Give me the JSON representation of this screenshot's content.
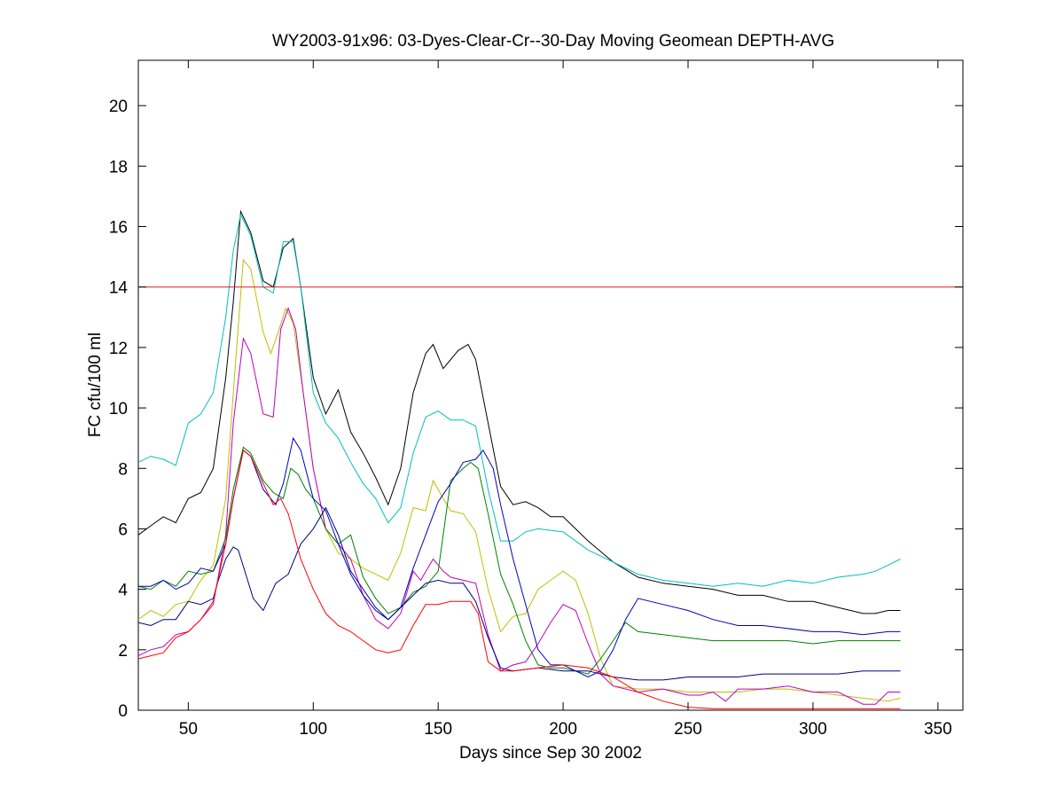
{
  "chart_data": {
    "type": "line",
    "title": "WY2003-91x96: 03-Dyes-Clear-Cr--30-Day Moving Geomean DEPTH-AVG",
    "xlabel": "Days since Sep 30 2002",
    "ylabel": "FC cfu/100 ml",
    "xlim": [
      30,
      360
    ],
    "ylim": [
      0,
      21.5
    ],
    "xticks": [
      50,
      100,
      150,
      200,
      250,
      300,
      350
    ],
    "yticks": [
      0,
      2,
      4,
      6,
      8,
      10,
      12,
      14,
      16,
      18,
      20
    ],
    "grid": false,
    "reference_line": {
      "y": 14,
      "color": "#e41a1c"
    },
    "series": [
      {
        "name": "black",
        "color": "#000000",
        "x": [
          30,
          35,
          40,
          45,
          50,
          55,
          60,
          65,
          68,
          71,
          75,
          80,
          84,
          88,
          92,
          95,
          100,
          105,
          110,
          115,
          120,
          125,
          130,
          135,
          140,
          145,
          148,
          152,
          155,
          158,
          162,
          165,
          170,
          175,
          180,
          185,
          190,
          195,
          200,
          210,
          220,
          230,
          240,
          250,
          260,
          270,
          280,
          290,
          300,
          310,
          320,
          325,
          330,
          335
        ],
        "y": [
          5.8,
          6.1,
          6.4,
          6.2,
          7.0,
          7.2,
          8.0,
          11.0,
          13.5,
          16.5,
          15.8,
          14.2,
          14.0,
          15.3,
          15.6,
          14.0,
          11.0,
          9.8,
          10.6,
          9.2,
          8.5,
          7.7,
          6.8,
          8.0,
          10.5,
          11.8,
          12.1,
          11.3,
          11.6,
          11.9,
          12.1,
          11.6,
          9.5,
          7.4,
          6.8,
          6.9,
          6.7,
          6.4,
          6.4,
          5.6,
          4.9,
          4.4,
          4.2,
          4.1,
          4.0,
          3.8,
          3.8,
          3.6,
          3.6,
          3.4,
          3.2,
          3.2,
          3.3,
          3.3
        ]
      },
      {
        "name": "cyan",
        "color": "#00bfbf",
        "x": [
          30,
          35,
          40,
          45,
          50,
          55,
          60,
          65,
          68,
          71,
          75,
          80,
          84,
          88,
          92,
          95,
          100,
          105,
          110,
          115,
          120,
          125,
          130,
          135,
          140,
          145,
          150,
          155,
          160,
          165,
          170,
          175,
          180,
          185,
          190,
          200,
          210,
          220,
          230,
          240,
          250,
          260,
          270,
          280,
          290,
          300,
          310,
          320,
          325,
          330,
          335
        ],
        "y": [
          8.2,
          8.4,
          8.3,
          8.1,
          9.5,
          9.8,
          10.5,
          13.0,
          15.2,
          16.4,
          15.7,
          14.0,
          13.8,
          15.5,
          15.5,
          14.0,
          10.5,
          9.5,
          9.0,
          8.2,
          7.5,
          7.0,
          6.2,
          6.7,
          8.5,
          9.7,
          9.9,
          9.6,
          9.6,
          9.4,
          7.3,
          5.6,
          5.6,
          5.9,
          6.0,
          5.9,
          5.3,
          4.9,
          4.5,
          4.3,
          4.2,
          4.1,
          4.2,
          4.1,
          4.3,
          4.2,
          4.4,
          4.5,
          4.6,
          4.8,
          5.0
        ]
      },
      {
        "name": "yellow",
        "color": "#bfbf00",
        "x": [
          30,
          35,
          40,
          45,
          50,
          55,
          60,
          65,
          68,
          72,
          75,
          80,
          83,
          86,
          89,
          92,
          96,
          100,
          105,
          110,
          115,
          120,
          125,
          130,
          135,
          140,
          145,
          148,
          152,
          155,
          160,
          165,
          170,
          175,
          180,
          185,
          190,
          195,
          200,
          205,
          210,
          215,
          220,
          230,
          240,
          250,
          260,
          270,
          280,
          290,
          300,
          310,
          320,
          330,
          335
        ],
        "y": [
          3.0,
          3.3,
          3.1,
          3.5,
          3.6,
          4.3,
          4.8,
          7.0,
          10.5,
          14.9,
          14.6,
          12.5,
          11.8,
          12.5,
          13.3,
          12.8,
          10.5,
          8.0,
          6.0,
          5.2,
          5.0,
          4.7,
          4.5,
          4.3,
          5.2,
          6.7,
          6.6,
          7.6,
          7.0,
          6.6,
          6.5,
          5.9,
          4.0,
          2.6,
          3.1,
          3.2,
          4.0,
          4.3,
          4.6,
          4.3,
          3.2,
          1.7,
          0.8,
          0.7,
          0.7,
          0.6,
          0.6,
          0.6,
          0.7,
          0.7,
          0.6,
          0.5,
          0.4,
          0.3,
          0.4
        ]
      },
      {
        "name": "magenta",
        "color": "#bf00bf",
        "x": [
          30,
          35,
          40,
          45,
          50,
          55,
          60,
          65,
          68,
          72,
          75,
          80,
          84,
          87,
          90,
          93,
          96,
          100,
          105,
          110,
          115,
          120,
          125,
          130,
          135,
          140,
          143,
          148,
          152,
          155,
          160,
          165,
          170,
          175,
          180,
          185,
          190,
          195,
          200,
          205,
          210,
          215,
          220,
          230,
          240,
          250,
          255,
          260,
          265,
          270,
          280,
          290,
          300,
          310,
          320,
          325,
          330,
          335
        ],
        "y": [
          1.8,
          2.0,
          2.1,
          2.5,
          2.6,
          3.0,
          3.5,
          5.8,
          9.5,
          12.3,
          11.8,
          9.8,
          9.7,
          12.6,
          13.3,
          12.6,
          10.5,
          8.0,
          6.0,
          5.5,
          5.0,
          3.8,
          3.0,
          2.7,
          3.2,
          4.6,
          4.3,
          5.0,
          4.6,
          4.4,
          4.3,
          4.2,
          2.5,
          1.3,
          1.5,
          1.6,
          2.2,
          2.9,
          3.5,
          3.3,
          2.2,
          1.2,
          0.8,
          0.6,
          0.7,
          0.5,
          0.5,
          0.6,
          0.3,
          0.7,
          0.7,
          0.8,
          0.6,
          0.6,
          0.2,
          0.2,
          0.6,
          0.6
        ]
      },
      {
        "name": "green",
        "color": "#008000",
        "x": [
          30,
          35,
          40,
          45,
          50,
          55,
          60,
          65,
          68,
          72,
          75,
          80,
          84,
          88,
          91,
          94,
          97,
          100,
          105,
          110,
          115,
          120,
          125,
          130,
          135,
          140,
          145,
          150,
          155,
          160,
          163,
          166,
          170,
          175,
          180,
          185,
          190,
          195,
          200,
          205,
          210,
          215,
          220,
          225,
          230,
          240,
          250,
          260,
          270,
          280,
          290,
          300,
          310,
          320,
          330,
          335
        ],
        "y": [
          4.1,
          4.0,
          4.3,
          4.1,
          4.6,
          4.5,
          4.6,
          5.7,
          7.3,
          8.7,
          8.5,
          7.6,
          7.2,
          7.0,
          8.0,
          7.8,
          7.3,
          7.0,
          6.0,
          5.5,
          5.8,
          4.4,
          3.7,
          3.2,
          3.4,
          3.9,
          4.1,
          4.6,
          7.6,
          8.0,
          8.2,
          8.0,
          6.5,
          4.5,
          3.5,
          2.3,
          1.5,
          1.4,
          1.4,
          1.3,
          1.2,
          1.7,
          2.3,
          2.9,
          2.6,
          2.5,
          2.4,
          2.3,
          2.3,
          2.3,
          2.3,
          2.2,
          2.3,
          2.3,
          2.3,
          2.3
        ]
      },
      {
        "name": "blue",
        "color": "#0000bf",
        "x": [
          30,
          35,
          40,
          45,
          50,
          55,
          60,
          65,
          68,
          72,
          75,
          80,
          85,
          88,
          92,
          95,
          100,
          105,
          110,
          115,
          120,
          125,
          130,
          135,
          140,
          145,
          150,
          155,
          160,
          165,
          168,
          172,
          175,
          180,
          185,
          190,
          195,
          200,
          205,
          210,
          215,
          220,
          225,
          230,
          240,
          250,
          260,
          270,
          280,
          290,
          300,
          310,
          320,
          330,
          335
        ],
        "y": [
          4.1,
          4.1,
          4.3,
          4.0,
          4.2,
          4.7,
          4.6,
          5.5,
          7.0,
          8.6,
          8.4,
          7.3,
          6.8,
          7.5,
          9.0,
          8.6,
          7.0,
          6.6,
          5.5,
          4.5,
          3.8,
          3.3,
          3.0,
          3.4,
          4.7,
          5.8,
          6.9,
          7.5,
          8.2,
          8.3,
          8.6,
          8.0,
          6.8,
          5.0,
          3.5,
          2.0,
          1.5,
          1.5,
          1.3,
          1.1,
          1.3,
          2.0,
          3.0,
          3.7,
          3.5,
          3.3,
          3.0,
          2.8,
          2.8,
          2.7,
          2.6,
          2.6,
          2.5,
          2.6,
          2.6
        ]
      },
      {
        "name": "navy",
        "color": "#000080",
        "x": [
          30,
          35,
          40,
          45,
          50,
          55,
          60,
          62,
          65,
          68,
          70,
          73,
          76,
          80,
          85,
          90,
          95,
          100,
          105,
          110,
          115,
          120,
          125,
          130,
          135,
          140,
          145,
          150,
          155,
          160,
          165,
          170,
          175,
          180,
          190,
          200,
          210,
          220,
          230,
          240,
          250,
          260,
          270,
          280,
          290,
          300,
          310,
          320,
          330,
          335
        ],
        "y": [
          2.9,
          2.8,
          3.0,
          3.0,
          3.6,
          3.5,
          3.7,
          4.3,
          5.0,
          5.4,
          5.3,
          4.5,
          3.7,
          3.3,
          4.2,
          4.5,
          5.5,
          6.0,
          6.7,
          5.8,
          4.6,
          4.0,
          3.4,
          3.0,
          3.4,
          3.8,
          4.2,
          4.3,
          4.2,
          4.2,
          3.6,
          2.4,
          1.4,
          1.3,
          1.4,
          1.3,
          1.3,
          1.1,
          1.0,
          1.0,
          1.1,
          1.1,
          1.1,
          1.2,
          1.2,
          1.2,
          1.2,
          1.3,
          1.3,
          1.3
        ]
      },
      {
        "name": "red",
        "color": "#ff0000",
        "x": [
          30,
          35,
          40,
          45,
          50,
          55,
          60,
          65,
          68,
          72,
          75,
          80,
          84,
          87,
          90,
          95,
          100,
          105,
          110,
          115,
          120,
          125,
          130,
          135,
          140,
          145,
          150,
          155,
          160,
          163,
          166,
          170,
          175,
          180,
          190,
          200,
          210,
          220,
          230,
          240,
          250,
          260,
          270,
          280,
          290,
          300,
          310,
          320,
          330,
          335
        ],
        "y": [
          1.7,
          1.8,
          1.9,
          2.4,
          2.6,
          3.0,
          3.6,
          5.5,
          7.0,
          8.6,
          8.4,
          7.5,
          6.8,
          7.0,
          6.5,
          5.0,
          4.0,
          3.2,
          2.8,
          2.6,
          2.3,
          2.0,
          1.9,
          2.0,
          2.8,
          3.5,
          3.5,
          3.6,
          3.6,
          3.6,
          3.2,
          1.6,
          1.3,
          1.3,
          1.4,
          1.5,
          1.4,
          1.1,
          0.6,
          0.3,
          0.1,
          0.05,
          0.05,
          0.05,
          0.05,
          0.05,
          0.05,
          0.05,
          0.05,
          0.05
        ]
      }
    ]
  }
}
